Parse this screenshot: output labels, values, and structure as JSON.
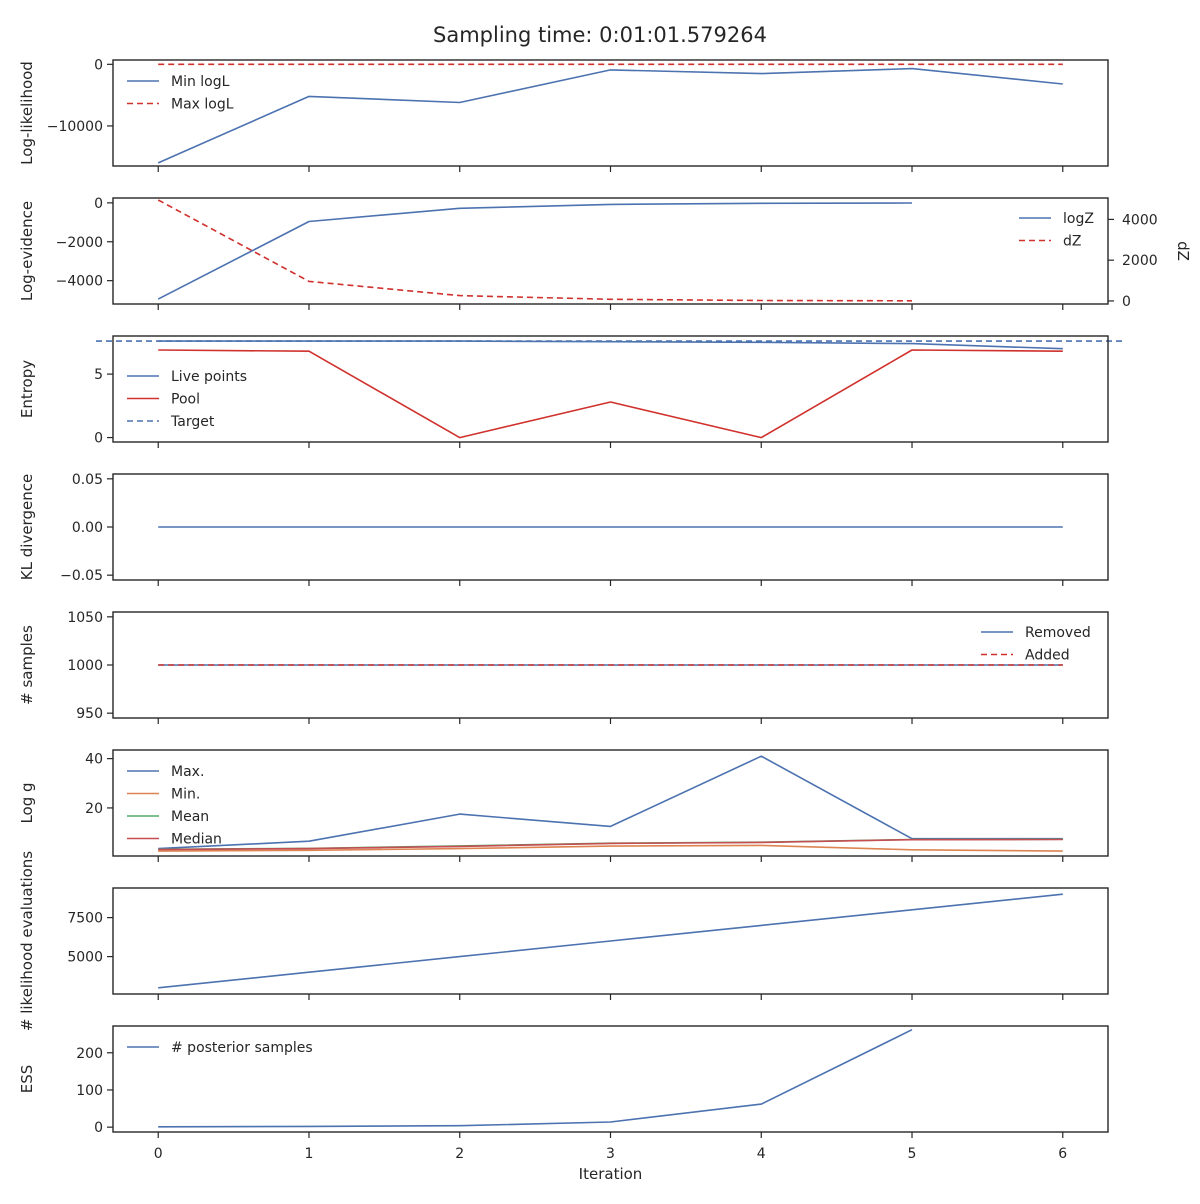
{
  "title": "Sampling time: 0:01:01.579264",
  "colors": {
    "blue": "#4c72b0",
    "red": "#d0312d",
    "orange": "#dd8452",
    "green": "#55a868",
    "median": "#c44e52",
    "frame": "#262626"
  },
  "chart_data": [
    {
      "type": "line",
      "ylabel": "Log-likelihood",
      "ylim": [
        -16500,
        700
      ],
      "yticks": [
        {
          "v": 0,
          "t": "0"
        },
        {
          "v": -10000,
          "t": "−10000"
        }
      ],
      "legend": "top-left",
      "series": [
        {
          "name": "Min logL",
          "color": "blue",
          "dash": false,
          "x": [
            0,
            1,
            2,
            3,
            4,
            5,
            6
          ],
          "y": [
            -16000,
            -5200,
            -6200,
            -900,
            -1500,
            -700,
            -3200
          ]
        },
        {
          "name": "Max logL",
          "color": "red",
          "dash": true,
          "x": [
            0,
            1,
            2,
            3,
            4,
            5,
            6
          ],
          "y": [
            0,
            0,
            0,
            0,
            0,
            0,
            0
          ]
        }
      ]
    },
    {
      "type": "line",
      "ylabel": "Log-evidence",
      "ylim": [
        -5200,
        250
      ],
      "yticks": [
        {
          "v": 0,
          "t": "0"
        },
        {
          "v": -2000,
          "t": "−2000"
        },
        {
          "v": -4000,
          "t": "−4000"
        }
      ],
      "ylabel_right": "dZ",
      "ylim_right": [
        -150,
        5050
      ],
      "yticks_right": [
        {
          "v": 0,
          "t": "0"
        },
        {
          "v": 2000,
          "t": "2000"
        },
        {
          "v": 4000,
          "t": "4000"
        }
      ],
      "legend": "top-right",
      "series": [
        {
          "name": "logZ",
          "color": "blue",
          "dash": false,
          "axis": "left",
          "x": [
            0,
            1,
            2,
            3,
            4,
            5
          ],
          "y": [
            -4950,
            -960,
            -280,
            -80,
            -20,
            -5
          ]
        },
        {
          "name": "dZ",
          "color": "red",
          "dash": true,
          "axis": "right",
          "x": [
            0,
            1,
            2,
            3,
            4,
            5
          ],
          "y": [
            4950,
            960,
            260,
            80,
            20,
            5
          ]
        }
      ]
    },
    {
      "type": "line",
      "ylabel": "Entropy",
      "ylim": [
        -0.35,
        8.0
      ],
      "yticks": [
        {
          "v": 0,
          "t": "0"
        },
        {
          "v": 5,
          "t": "5"
        }
      ],
      "legend": "bottom-left",
      "series": [
        {
          "name": "Live points",
          "color": "blue",
          "dash": false,
          "x": [
            0,
            1,
            2,
            3,
            4,
            5,
            6
          ],
          "y": [
            7.6,
            7.6,
            7.6,
            7.55,
            7.5,
            7.4,
            7.0
          ]
        },
        {
          "name": "Pool",
          "color": "red",
          "dash": false,
          "x": [
            0,
            1,
            2,
            3,
            4,
            5,
            6
          ],
          "y": [
            6.9,
            6.8,
            0,
            2.8,
            0,
            6.9,
            6.8
          ]
        },
        {
          "name": "Target",
          "color": "blue",
          "dash": true,
          "hline": 7.6
        }
      ]
    },
    {
      "type": "line",
      "ylabel": "KL divergence",
      "ylim": [
        -0.055,
        0.055
      ],
      "yticks": [
        {
          "v": 0.05,
          "t": "0.05"
        },
        {
          "v": 0,
          "t": "0.00"
        },
        {
          "v": -0.05,
          "t": "−0.05"
        }
      ],
      "series": [
        {
          "name": "",
          "color": "blue",
          "dash": false,
          "x": [
            0,
            1,
            2,
            3,
            4,
            5,
            6
          ],
          "y": [
            0,
            0,
            0,
            0,
            0,
            0,
            0
          ]
        }
      ]
    },
    {
      "type": "line",
      "ylabel": "# samples",
      "ylim": [
        945,
        1055
      ],
      "yticks": [
        {
          "v": 1050,
          "t": "1050"
        },
        {
          "v": 1000,
          "t": "1000"
        },
        {
          "v": 950,
          "t": "950"
        }
      ],
      "legend": "top-right",
      "series": [
        {
          "name": "Removed",
          "color": "blue",
          "dash": false,
          "x": [
            0,
            1,
            2,
            3,
            4,
            5,
            6
          ],
          "y": [
            1000,
            1000,
            1000,
            1000,
            1000,
            1000,
            1000
          ]
        },
        {
          "name": "Added",
          "color": "red",
          "dash": true,
          "x": [
            0,
            1,
            2,
            3,
            4,
            5,
            6
          ],
          "y": [
            1000,
            1000,
            1000,
            1000,
            1000,
            1000,
            1000
          ]
        }
      ]
    },
    {
      "type": "line",
      "ylabel": "Log g",
      "ylim": [
        0.5,
        43.5
      ],
      "yticks": [
        {
          "v": 40,
          "t": "40"
        },
        {
          "v": 20,
          "t": "20"
        }
      ],
      "legend": "top-left",
      "series": [
        {
          "name": "Max.",
          "color": "blue",
          "dash": false,
          "x": [
            0,
            1,
            2,
            3,
            4,
            5,
            6
          ],
          "y": [
            3.5,
            6.5,
            17.5,
            12.5,
            41,
            7.5,
            7.5
          ]
        },
        {
          "name": "Min.",
          "color": "orange",
          "dash": false,
          "x": [
            0,
            1,
            2,
            3,
            4,
            5,
            6
          ],
          "y": [
            2.5,
            2.8,
            3.5,
            4.5,
            4.8,
            3,
            2.5
          ]
        },
        {
          "name": "Mean",
          "color": "green",
          "dash": false,
          "x": [
            0,
            1,
            2,
            3,
            4,
            5,
            6
          ],
          "y": [
            3.2,
            3.6,
            4.6,
            5.7,
            6.1,
            7.2,
            7.3
          ]
        },
        {
          "name": "Median",
          "color": "median",
          "dash": false,
          "x": [
            0,
            1,
            2,
            3,
            4,
            5,
            6
          ],
          "y": [
            3.1,
            3.5,
            4.4,
            5.6,
            6.0,
            7.1,
            7.2
          ]
        }
      ]
    },
    {
      "type": "line",
      "ylabel": "# likelihood evaluations",
      "ylim": [
        2600,
        9400
      ],
      "yticks": [
        {
          "v": 7500,
          "t": "7500"
        },
        {
          "v": 5000,
          "t": "5000"
        }
      ],
      "series": [
        {
          "name": "",
          "color": "blue",
          "dash": false,
          "x": [
            0,
            1,
            2,
            3,
            4,
            5,
            6
          ],
          "y": [
            3000,
            4000,
            5000,
            6000,
            7000,
            8000,
            9000
          ]
        }
      ]
    },
    {
      "type": "line",
      "ylabel": "ESS",
      "ylim": [
        -13,
        272
      ],
      "yticks": [
        {
          "v": 0,
          "t": "0"
        },
        {
          "v": 100,
          "t": "100"
        },
        {
          "v": 200,
          "t": "200"
        }
      ],
      "legend": "top-left",
      "xlabel": "Iteration",
      "xticks": [
        "0",
        "1",
        "2",
        "3",
        "4",
        "5",
        "6"
      ],
      "series": [
        {
          "name": "# posterior samples",
          "color": "blue",
          "dash": false,
          "x": [
            0,
            1,
            2,
            3,
            4,
            5
          ],
          "y": [
            1,
            2,
            4,
            14,
            62,
            262
          ]
        }
      ]
    }
  ]
}
